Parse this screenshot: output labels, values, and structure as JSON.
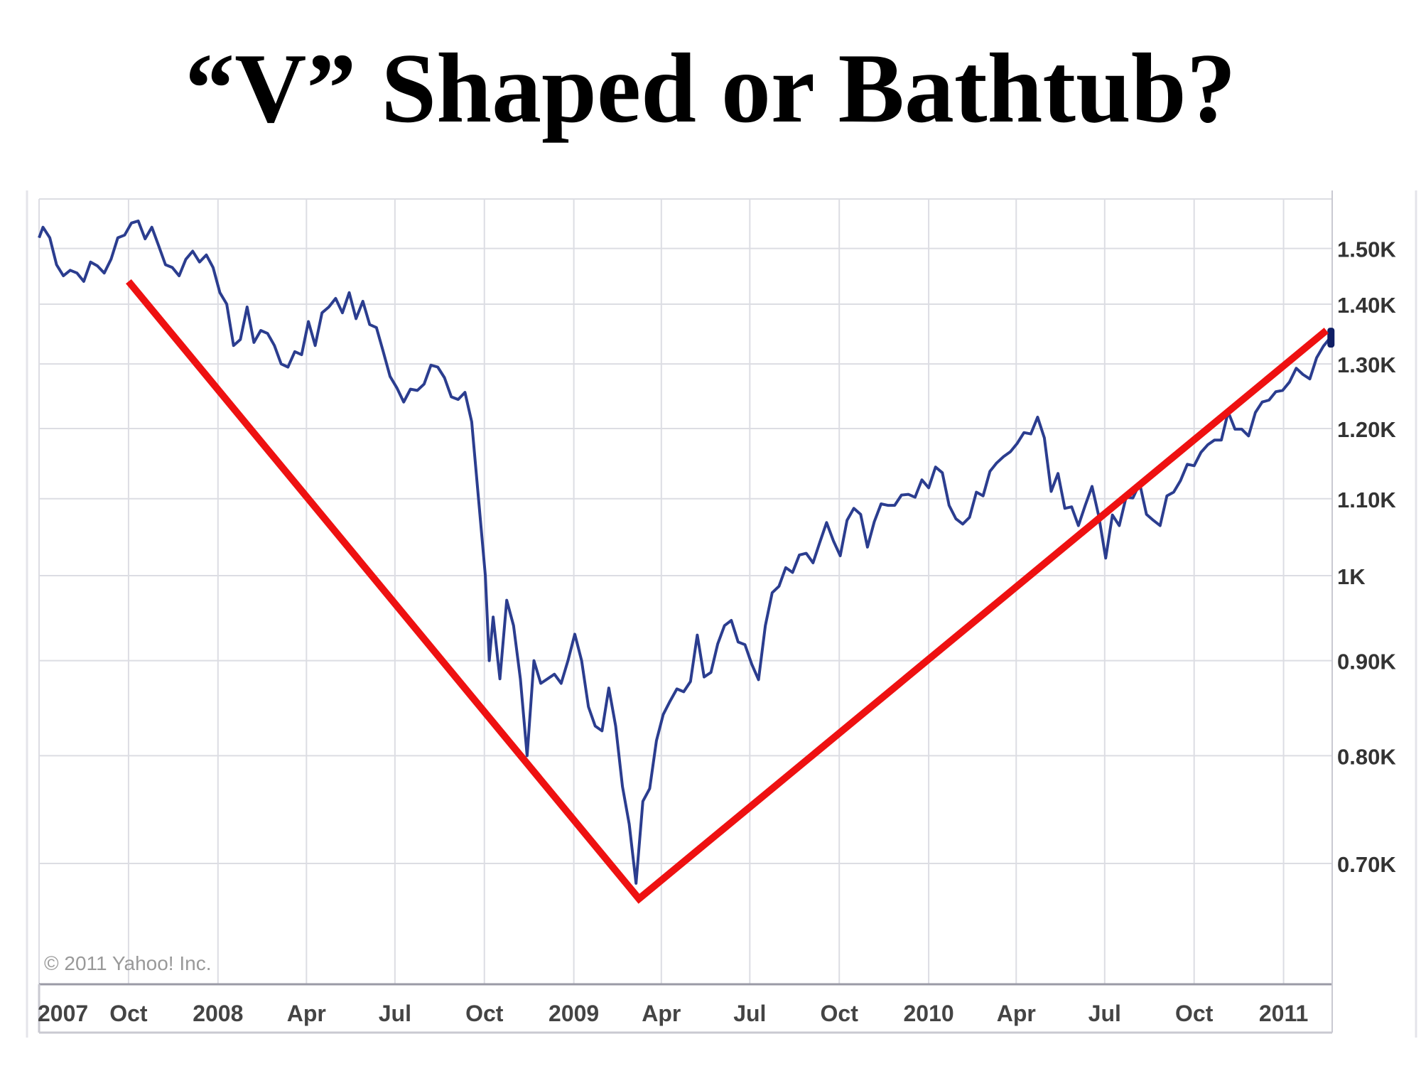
{
  "slide": {
    "title": "“V” Shaped or Bathtub?"
  },
  "chart_data": {
    "type": "line",
    "title": "“V” Shaped or Bathtub?",
    "source": "© 2011 Yahoo! Inc.",
    "y_scale": "log",
    "ylim": [
      620,
      1600
    ],
    "xlim": [
      "2007-07-01",
      "2011-02-20"
    ],
    "grid": true,
    "y_ticks": [
      {
        "value": 1500,
        "label": "1.50K"
      },
      {
        "value": 1400,
        "label": "1.40K"
      },
      {
        "value": 1300,
        "label": "1.30K"
      },
      {
        "value": 1200,
        "label": "1.20K"
      },
      {
        "value": 1100,
        "label": "1.10K"
      },
      {
        "value": 1000,
        "label": "1K"
      },
      {
        "value": 900,
        "label": "0.90K"
      },
      {
        "value": 800,
        "label": "0.80K"
      },
      {
        "value": 700,
        "label": "0.70K"
      }
    ],
    "x_ticks": [
      {
        "date": "2007-07-01",
        "label": "2007"
      },
      {
        "date": "2007-10-01",
        "label": "Oct"
      },
      {
        "date": "2008-01-01",
        "label": "2008"
      },
      {
        "date": "2008-04-01",
        "label": "Apr"
      },
      {
        "date": "2008-07-01",
        "label": "Jul"
      },
      {
        "date": "2008-10-01",
        "label": "Oct"
      },
      {
        "date": "2009-01-01",
        "label": "2009"
      },
      {
        "date": "2009-04-01",
        "label": "Apr"
      },
      {
        "date": "2009-07-01",
        "label": "Jul"
      },
      {
        "date": "2009-10-01",
        "label": "Oct"
      },
      {
        "date": "2010-01-01",
        "label": "2010"
      },
      {
        "date": "2010-04-01",
        "label": "Apr"
      },
      {
        "date": "2010-07-01",
        "label": "Jul"
      },
      {
        "date": "2010-10-01",
        "label": "Oct"
      },
      {
        "date": "2011-01-01",
        "label": "2011"
      }
    ],
    "series": [
      {
        "color": "#2b3d8f",
        "points": [
          [
            "2007-07-01",
            1520
          ],
          [
            "2007-07-05",
            1540
          ],
          [
            "2007-07-12",
            1520
          ],
          [
            "2007-07-19",
            1470
          ],
          [
            "2007-07-26",
            1450
          ],
          [
            "2007-08-02",
            1460
          ],
          [
            "2007-08-09",
            1455
          ],
          [
            "2007-08-16",
            1440
          ],
          [
            "2007-08-23",
            1475
          ],
          [
            "2007-08-30",
            1468
          ],
          [
            "2007-09-06",
            1455
          ],
          [
            "2007-09-13",
            1480
          ],
          [
            "2007-09-20",
            1520
          ],
          [
            "2007-09-27",
            1525
          ],
          [
            "2007-10-04",
            1548
          ],
          [
            "2007-10-11",
            1552
          ],
          [
            "2007-10-18",
            1518
          ],
          [
            "2007-10-25",
            1540
          ],
          [
            "2007-11-01",
            1505
          ],
          [
            "2007-11-08",
            1470
          ],
          [
            "2007-11-15",
            1465
          ],
          [
            "2007-11-22",
            1450
          ],
          [
            "2007-11-29",
            1480
          ],
          [
            "2007-12-06",
            1495
          ],
          [
            "2007-12-13",
            1475
          ],
          [
            "2007-12-20",
            1488
          ],
          [
            "2007-12-27",
            1465
          ],
          [
            "2008-01-03",
            1420
          ],
          [
            "2008-01-10",
            1400
          ],
          [
            "2008-01-17",
            1330
          ],
          [
            "2008-01-24",
            1340
          ],
          [
            "2008-01-31",
            1395
          ],
          [
            "2008-02-07",
            1335
          ],
          [
            "2008-02-14",
            1355
          ],
          [
            "2008-02-21",
            1350
          ],
          [
            "2008-02-28",
            1330
          ],
          [
            "2008-03-06",
            1300
          ],
          [
            "2008-03-13",
            1295
          ],
          [
            "2008-03-20",
            1320
          ],
          [
            "2008-03-27",
            1315
          ],
          [
            "2008-04-03",
            1370
          ],
          [
            "2008-04-10",
            1330
          ],
          [
            "2008-04-17",
            1385
          ],
          [
            "2008-04-24",
            1395
          ],
          [
            "2008-05-01",
            1410
          ],
          [
            "2008-05-08",
            1385
          ],
          [
            "2008-05-15",
            1420
          ],
          [
            "2008-05-22",
            1375
          ],
          [
            "2008-05-29",
            1405
          ],
          [
            "2008-06-05",
            1365
          ],
          [
            "2008-06-12",
            1360
          ],
          [
            "2008-06-19",
            1320
          ],
          [
            "2008-06-26",
            1280
          ],
          [
            "2008-07-03",
            1262
          ],
          [
            "2008-07-10",
            1240
          ],
          [
            "2008-07-17",
            1260
          ],
          [
            "2008-07-24",
            1258
          ],
          [
            "2008-07-31",
            1268
          ],
          [
            "2008-08-07",
            1298
          ],
          [
            "2008-08-14",
            1295
          ],
          [
            "2008-08-21",
            1278
          ],
          [
            "2008-08-28",
            1248
          ],
          [
            "2008-09-04",
            1244
          ],
          [
            "2008-09-11",
            1255
          ],
          [
            "2008-09-18",
            1210
          ],
          [
            "2008-09-25",
            1100
          ],
          [
            "2008-10-02",
            1000
          ],
          [
            "2008-10-06",
            900
          ],
          [
            "2008-10-10",
            950
          ],
          [
            "2008-10-17",
            880
          ],
          [
            "2008-10-24",
            970
          ],
          [
            "2008-10-31",
            940
          ],
          [
            "2008-11-07",
            880
          ],
          [
            "2008-11-14",
            800
          ],
          [
            "2008-11-21",
            900
          ],
          [
            "2008-11-28",
            875
          ],
          [
            "2008-12-05",
            880
          ],
          [
            "2008-12-12",
            885
          ],
          [
            "2008-12-19",
            875
          ],
          [
            "2008-12-26",
            900
          ],
          [
            "2009-01-02",
            930
          ],
          [
            "2009-01-09",
            900
          ],
          [
            "2009-01-16",
            850
          ],
          [
            "2009-01-23",
            830
          ],
          [
            "2009-01-30",
            825
          ],
          [
            "2009-02-06",
            870
          ],
          [
            "2009-02-13",
            830
          ],
          [
            "2009-02-20",
            770
          ],
          [
            "2009-02-27",
            735
          ],
          [
            "2009-03-06",
            683
          ],
          [
            "2009-03-13",
            756
          ],
          [
            "2009-03-20",
            768
          ],
          [
            "2009-03-27",
            815
          ],
          [
            "2009-04-03",
            842
          ],
          [
            "2009-04-10",
            856
          ],
          [
            "2009-04-17",
            869
          ],
          [
            "2009-04-24",
            866
          ],
          [
            "2009-05-01",
            877
          ],
          [
            "2009-05-08",
            929
          ],
          [
            "2009-05-15",
            882
          ],
          [
            "2009-05-22",
            887
          ],
          [
            "2009-05-29",
            919
          ],
          [
            "2009-06-05",
            940
          ],
          [
            "2009-06-12",
            946
          ],
          [
            "2009-06-19",
            921
          ],
          [
            "2009-06-26",
            918
          ],
          [
            "2009-07-03",
            896
          ],
          [
            "2009-07-10",
            879
          ],
          [
            "2009-07-17",
            940
          ],
          [
            "2009-07-24",
            979
          ],
          [
            "2009-07-31",
            987
          ],
          [
            "2009-08-07",
            1010
          ],
          [
            "2009-08-14",
            1004
          ],
          [
            "2009-08-21",
            1026
          ],
          [
            "2009-08-28",
            1028
          ],
          [
            "2009-09-04",
            1016
          ],
          [
            "2009-09-11",
            1042
          ],
          [
            "2009-09-18",
            1068
          ],
          [
            "2009-09-25",
            1044
          ],
          [
            "2009-10-02",
            1025
          ],
          [
            "2009-10-09",
            1071
          ],
          [
            "2009-10-16",
            1087
          ],
          [
            "2009-10-23",
            1079
          ],
          [
            "2009-10-30",
            1036
          ],
          [
            "2009-11-06",
            1069
          ],
          [
            "2009-11-13",
            1093
          ],
          [
            "2009-11-20",
            1091
          ],
          [
            "2009-11-27",
            1091
          ],
          [
            "2009-12-04",
            1105
          ],
          [
            "2009-12-11",
            1106
          ],
          [
            "2009-12-18",
            1102
          ],
          [
            "2009-12-25",
            1126
          ],
          [
            "2010-01-01",
            1115
          ],
          [
            "2010-01-08",
            1144
          ],
          [
            "2010-01-15",
            1136
          ],
          [
            "2010-01-22",
            1091
          ],
          [
            "2010-01-29",
            1073
          ],
          [
            "2010-02-05",
            1066
          ],
          [
            "2010-02-12",
            1075
          ],
          [
            "2010-02-19",
            1109
          ],
          [
            "2010-02-26",
            1104
          ],
          [
            "2010-03-05",
            1138
          ],
          [
            "2010-03-12",
            1150
          ],
          [
            "2010-03-19",
            1159
          ],
          [
            "2010-03-26",
            1166
          ],
          [
            "2010-04-02",
            1178
          ],
          [
            "2010-04-09",
            1194
          ],
          [
            "2010-04-16",
            1192
          ],
          [
            "2010-04-23",
            1217
          ],
          [
            "2010-04-30",
            1186
          ],
          [
            "2010-05-07",
            1110
          ],
          [
            "2010-05-14",
            1135
          ],
          [
            "2010-05-21",
            1087
          ],
          [
            "2010-05-28",
            1089
          ],
          [
            "2010-06-04",
            1064
          ],
          [
            "2010-06-11",
            1091
          ],
          [
            "2010-06-18",
            1117
          ],
          [
            "2010-06-25",
            1076
          ],
          [
            "2010-07-02",
            1022
          ],
          [
            "2010-07-09",
            1078
          ],
          [
            "2010-07-16",
            1064
          ],
          [
            "2010-07-23",
            1102
          ],
          [
            "2010-07-30",
            1101
          ],
          [
            "2010-08-06",
            1121
          ],
          [
            "2010-08-13",
            1079
          ],
          [
            "2010-08-20",
            1071
          ],
          [
            "2010-08-27",
            1064
          ],
          [
            "2010-09-03",
            1104
          ],
          [
            "2010-09-10",
            1109
          ],
          [
            "2010-09-17",
            1125
          ],
          [
            "2010-09-24",
            1148
          ],
          [
            "2010-10-01",
            1146
          ],
          [
            "2010-10-08",
            1165
          ],
          [
            "2010-10-15",
            1176
          ],
          [
            "2010-10-22",
            1183
          ],
          [
            "2010-10-29",
            1183
          ],
          [
            "2010-11-05",
            1225
          ],
          [
            "2010-11-12",
            1199
          ],
          [
            "2010-11-19",
            1199
          ],
          [
            "2010-11-26",
            1189
          ],
          [
            "2010-12-03",
            1224
          ],
          [
            "2010-12-10",
            1240
          ],
          [
            "2010-12-17",
            1243
          ],
          [
            "2010-12-24",
            1256
          ],
          [
            "2010-12-31",
            1258
          ],
          [
            "2011-01-07",
            1271
          ],
          [
            "2011-01-14",
            1293
          ],
          [
            "2011-01-21",
            1283
          ],
          [
            "2011-01-28",
            1276
          ],
          [
            "2011-02-04",
            1310
          ],
          [
            "2011-02-11",
            1329
          ],
          [
            "2011-02-18",
            1343
          ]
        ]
      }
    ],
    "annotations": [
      {
        "type": "v-line",
        "color": "#ee1111",
        "points": [
          [
            "2007-10-01",
            1440
          ],
          [
            "2009-03-09",
            670
          ],
          [
            "2011-02-14",
            1355
          ]
        ]
      }
    ]
  }
}
